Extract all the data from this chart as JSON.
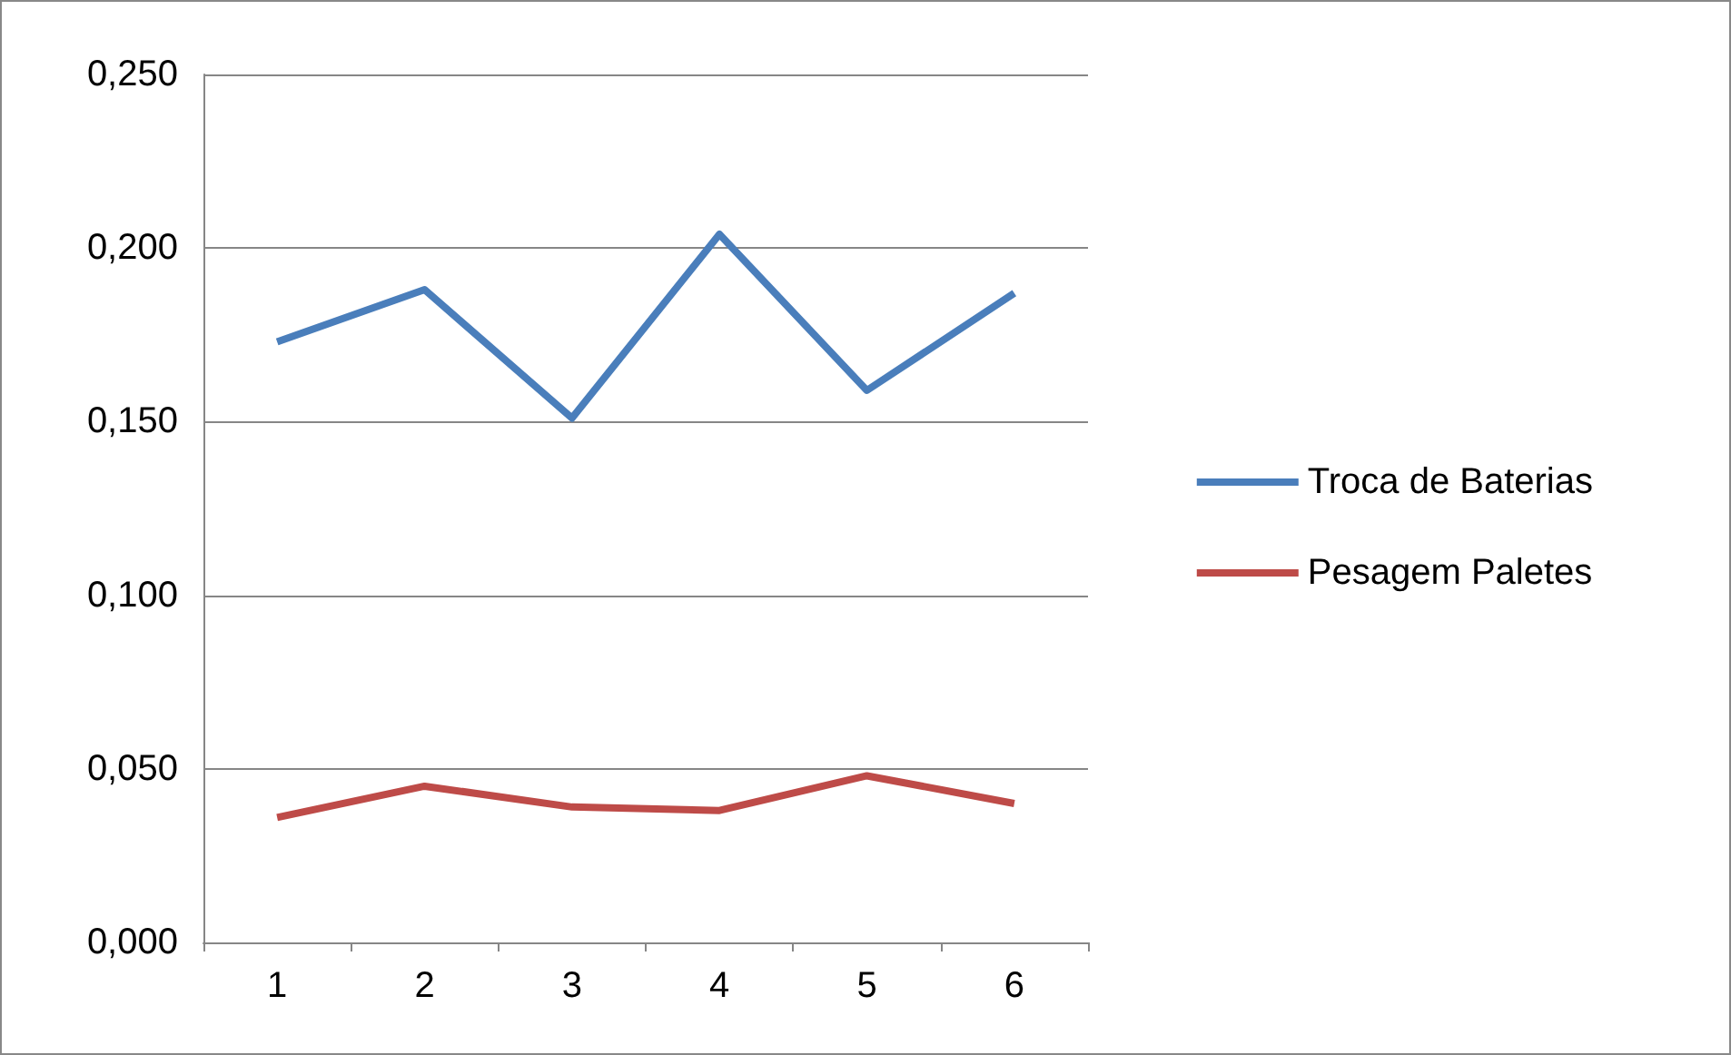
{
  "chart_data": {
    "type": "line",
    "categories": [
      "1",
      "2",
      "3",
      "4",
      "5",
      "6"
    ],
    "series": [
      {
        "name": "Troca de Baterias",
        "color": "#4a7ebb",
        "values": [
          0.173,
          0.188,
          0.151,
          0.204,
          0.159,
          0.187
        ]
      },
      {
        "name": "Pesagem Paletes",
        "color": "#be4b48",
        "values": [
          0.036,
          0.045,
          0.039,
          0.038,
          0.048,
          0.04
        ]
      }
    ],
    "ylim": [
      0,
      0.25
    ],
    "yticks": [
      {
        "value": 0,
        "label": "0,000"
      },
      {
        "value": 0.05,
        "label": "0,050"
      },
      {
        "value": 0.1,
        "label": "0,100"
      },
      {
        "value": 0.15,
        "label": "0,150"
      },
      {
        "value": 0.2,
        "label": "0,200"
      },
      {
        "value": 0.25,
        "label": "0,250"
      }
    ],
    "grid": "y",
    "legend": "right",
    "marker": "none",
    "line_style": "solid"
  }
}
